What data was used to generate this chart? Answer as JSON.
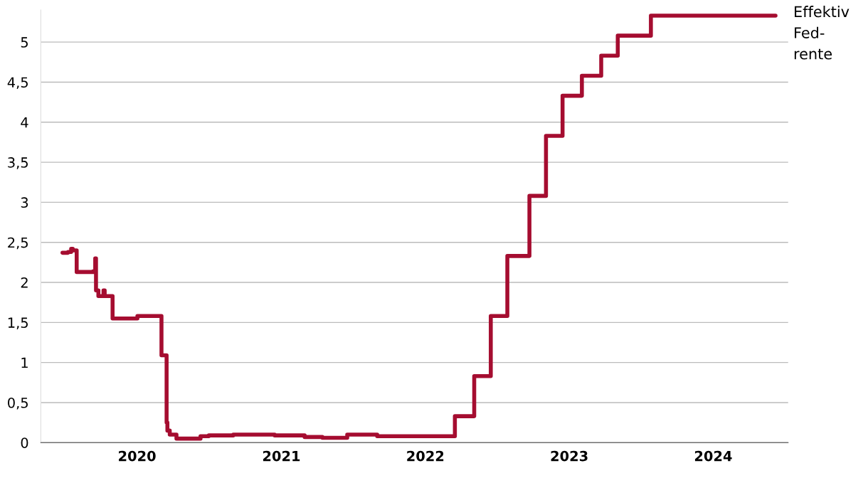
{
  "chart_data": {
    "type": "step",
    "xlim": [
      "2019-05-02",
      "2024-07-09"
    ],
    "ylim": [
      0,
      5.4
    ],
    "xticks": [
      {
        "value": "2020-01-01",
        "label": "2020"
      },
      {
        "value": "2021-01-01",
        "label": "2021"
      },
      {
        "value": "2022-01-01",
        "label": "2022"
      },
      {
        "value": "2023-01-01",
        "label": "2023"
      },
      {
        "value": "2024-01-01",
        "label": "2024"
      }
    ],
    "yticks": [
      0,
      {
        "value": 0.5,
        "label": "0,5"
      },
      1,
      {
        "value": 1.5,
        "label": "1,5"
      },
      2,
      {
        "value": 2.5,
        "label": "2,5"
      },
      3,
      {
        "value": 3.5,
        "label": "3,5"
      },
      4,
      {
        "value": 4.5,
        "label": "4,5"
      },
      5
    ],
    "grid": "y",
    "legend": false,
    "series": [
      {
        "name": "Effektiv Fed-rente",
        "color": "#a50d30",
        "x": [
          "2019-06-26",
          "2019-07-10",
          "2019-07-18",
          "2019-07-22",
          "2019-08-01",
          "2019-09-12",
          "2019-09-17",
          "2019-09-19",
          "2019-09-25",
          "2019-10-08",
          "2019-10-11",
          "2019-10-31",
          "2020-01-02",
          "2020-03-03",
          "2020-03-16",
          "2020-03-18",
          "2020-03-24",
          "2020-04-10",
          "2020-06-10",
          "2020-07-01",
          "2020-09-01",
          "2020-12-15",
          "2021-03-01",
          "2021-04-15",
          "2021-06-17",
          "2021-09-01",
          "2022-03-17",
          "2022-05-05",
          "2022-06-16",
          "2022-07-28",
          "2022-09-22",
          "2022-11-03",
          "2022-12-15",
          "2023-02-02",
          "2023-03-23",
          "2023-05-04",
          "2023-07-27",
          "2024-06-07"
        ],
        "values": [
          2.37,
          2.38,
          2.42,
          2.4,
          2.13,
          2.14,
          2.3,
          1.9,
          1.83,
          1.9,
          1.83,
          1.55,
          1.58,
          1.09,
          0.25,
          0.15,
          0.1,
          0.05,
          0.08,
          0.09,
          0.1,
          0.09,
          0.07,
          0.06,
          0.1,
          0.08,
          0.33,
          0.83,
          1.58,
          2.33,
          3.08,
          3.83,
          4.33,
          4.58,
          4.83,
          5.08,
          5.33,
          5.33
        ]
      }
    ]
  }
}
